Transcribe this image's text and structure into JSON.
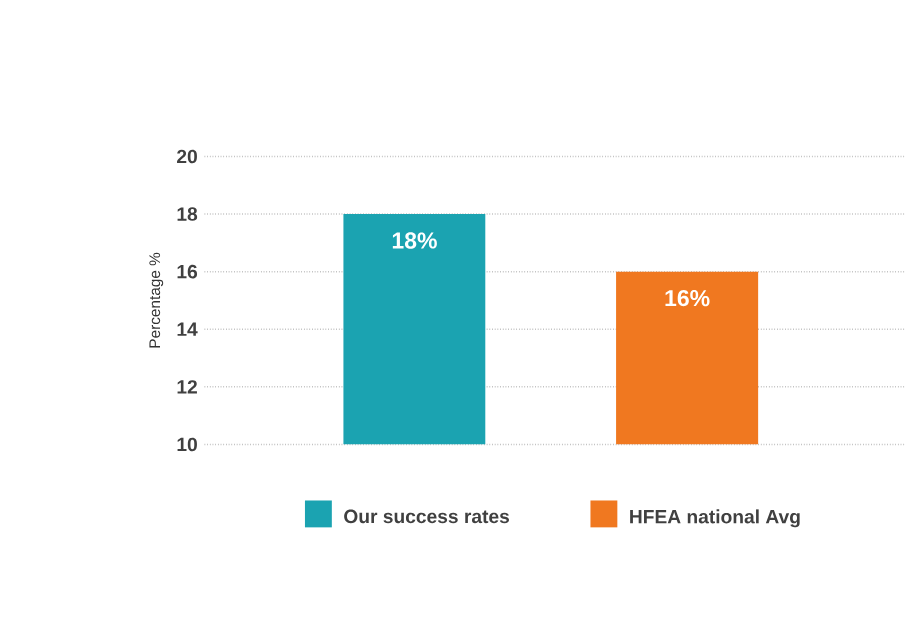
{
  "chart_data": {
    "type": "bar",
    "ylabel": "Percentage %",
    "categories": [
      null,
      null
    ],
    "series": [
      {
        "name": "Our success rates",
        "color": "#1ba3b1",
        "values": [
          18,
          null
        ],
        "value_labels": [
          "18%",
          null
        ]
      },
      {
        "name": "HFEA national Avg",
        "color": "#f07820",
        "values": [
          null,
          16
        ],
        "value_labels": [
          null,
          "16%"
        ]
      }
    ],
    "ylim": [
      10,
      20
    ],
    "yticks": [
      10,
      12,
      14,
      16,
      18,
      20
    ],
    "grid": "y",
    "legend": "bottom"
  }
}
